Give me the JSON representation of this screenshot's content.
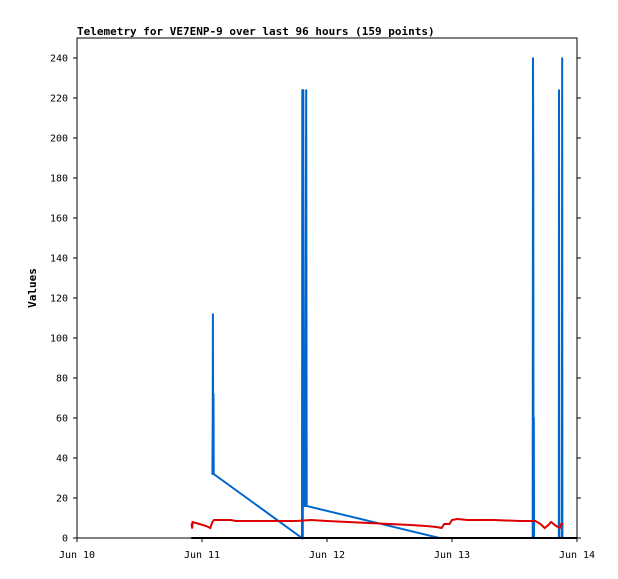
{
  "chart_data": {
    "type": "line",
    "title": "Telemetry for VE7ENP-9 over last 96 hours (159 points)",
    "xlabel": "",
    "ylabel": "Values",
    "x_unit": "hours",
    "xlim": [
      0,
      96
    ],
    "ylim": [
      0,
      250
    ],
    "grid": false,
    "y_ticks": [
      0,
      20,
      40,
      60,
      80,
      100,
      120,
      140,
      160,
      180,
      200,
      220,
      240
    ],
    "x_ticks": [
      {
        "label": "Jun 10",
        "x": 0
      },
      {
        "label": "Jun 11",
        "x": 24
      },
      {
        "label": "Jun 12",
        "x": 48
      },
      {
        "label": "Jun 13",
        "x": 72
      },
      {
        "label": "Jun 14",
        "x": 96
      }
    ],
    "series": [
      {
        "color": "#0066cc",
        "points": [
          [
            26.0,
            32
          ],
          [
            26.05,
            56
          ],
          [
            26.1,
            112
          ],
          [
            26.15,
            32
          ],
          [
            26.2,
            72
          ],
          [
            26.25,
            32
          ],
          [
            43.2,
            0
          ],
          [
            43.25,
            224
          ],
          [
            43.3,
            192
          ],
          [
            43.35,
            0
          ],
          [
            43.45,
            224
          ],
          [
            43.5,
            16
          ],
          [
            43.8,
            16
          ],
          [
            44.0,
            224
          ],
          [
            44.1,
            16
          ],
          [
            69.6,
            0
          ],
          [
            87.5,
            0
          ],
          [
            87.55,
            240
          ],
          [
            87.6,
            180
          ],
          [
            87.65,
            0
          ],
          [
            87.7,
            60
          ],
          [
            87.75,
            0
          ],
          [
            92.5,
            0
          ],
          [
            92.55,
            224
          ],
          [
            92.6,
            0
          ],
          [
            93.1,
            0
          ],
          [
            93.15,
            240
          ],
          [
            93.2,
            0
          ]
        ]
      },
      {
        "color": "#dd0000",
        "points": [
          [
            22.0,
            7
          ],
          [
            22.1,
            5
          ],
          [
            22.2,
            8
          ],
          [
            23.5,
            7
          ],
          [
            24.8,
            6
          ],
          [
            25.6,
            5
          ],
          [
            26.0,
            8
          ],
          [
            26.3,
            9
          ],
          [
            28.0,
            9
          ],
          [
            29.5,
            9
          ],
          [
            30.5,
            8.5
          ],
          [
            34.0,
            8.5
          ],
          [
            38.0,
            8.5
          ],
          [
            42.0,
            8.5
          ],
          [
            45.0,
            9
          ],
          [
            48.0,
            8.5
          ],
          [
            52.0,
            8
          ],
          [
            56.0,
            7.5
          ],
          [
            60.0,
            7
          ],
          [
            64.0,
            6.5
          ],
          [
            67.0,
            6
          ],
          [
            69.0,
            5.5
          ],
          [
            70.0,
            5
          ],
          [
            70.5,
            7
          ],
          [
            71.5,
            7
          ],
          [
            72.0,
            9
          ],
          [
            73.0,
            9.5
          ],
          [
            75.0,
            9
          ],
          [
            80.0,
            9
          ],
          [
            85.0,
            8.5
          ],
          [
            88.0,
            8.5
          ],
          [
            89.0,
            7
          ],
          [
            89.8,
            5
          ],
          [
            90.5,
            6.5
          ],
          [
            91.0,
            8
          ],
          [
            92.0,
            6
          ],
          [
            92.7,
            5
          ],
          [
            93.0,
            7
          ],
          [
            93.3,
            7
          ]
        ]
      },
      {
        "color": "#000000",
        "points": [
          [
            22.0,
            0
          ],
          [
            96.0,
            0
          ]
        ]
      }
    ]
  }
}
